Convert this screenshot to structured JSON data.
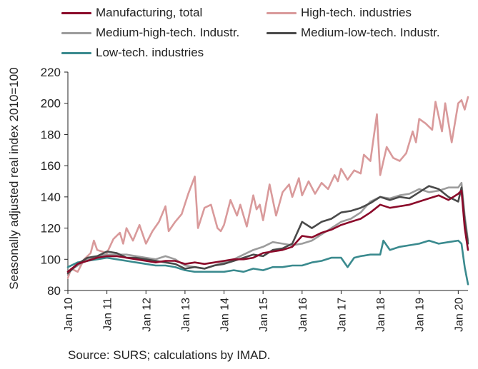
{
  "chart_data": {
    "type": "line",
    "ylabel": "Seasonally adjusted real index 2010=100",
    "ylim": [
      80,
      220
    ],
    "yticks": [
      80,
      100,
      120,
      140,
      160,
      180,
      200,
      220
    ],
    "xticks": [
      "Jan 10",
      "Jan 11",
      "Jan 12",
      "Jan 13",
      "Jan 14",
      "Jan 15",
      "Jan 16",
      "Jan 17",
      "Jan 18",
      "Jan 19",
      "Jan 20"
    ],
    "x_start": "2010-01",
    "x_end": "2020-04",
    "series": [
      {
        "name": "Manufacturing, total",
        "color": "#8B0A2A",
        "points": [
          [
            "2010-01",
            92
          ],
          [
            "2010-04",
            97
          ],
          [
            "2010-07",
            99
          ],
          [
            "2010-10",
            101
          ],
          [
            "2011-01",
            102
          ],
          [
            "2011-04",
            102
          ],
          [
            "2011-07",
            101
          ],
          [
            "2011-10",
            100
          ],
          [
            "2012-01",
            99
          ],
          [
            "2012-04",
            98
          ],
          [
            "2012-07",
            99
          ],
          [
            "2012-10",
            99
          ],
          [
            "2013-01",
            97
          ],
          [
            "2013-04",
            98
          ],
          [
            "2013-07",
            97
          ],
          [
            "2013-10",
            98
          ],
          [
            "2014-01",
            99
          ],
          [
            "2014-04",
            100
          ],
          [
            "2014-07",
            100
          ],
          [
            "2014-10",
            101
          ],
          [
            "2015-01",
            104
          ],
          [
            "2015-04",
            105
          ],
          [
            "2015-07",
            106
          ],
          [
            "2015-10",
            108
          ],
          [
            "2016-01",
            115
          ],
          [
            "2016-04",
            114
          ],
          [
            "2016-07",
            117
          ],
          [
            "2016-10",
            119
          ],
          [
            "2017-01",
            122
          ],
          [
            "2017-04",
            124
          ],
          [
            "2017-07",
            126
          ],
          [
            "2017-10",
            130
          ],
          [
            "2018-01",
            135
          ],
          [
            "2018-04",
            133
          ],
          [
            "2018-07",
            134
          ],
          [
            "2018-10",
            135
          ],
          [
            "2019-01",
            137
          ],
          [
            "2019-04",
            139
          ],
          [
            "2019-07",
            141
          ],
          [
            "2019-10",
            138
          ],
          [
            "2020-01",
            142
          ],
          [
            "2020-02",
            144
          ],
          [
            "2020-03",
            120
          ],
          [
            "2020-04",
            106
          ]
        ]
      },
      {
        "name": "High-tech. industries",
        "color": "#D99A9B",
        "points": [
          [
            "2010-01",
            88
          ],
          [
            "2010-02",
            94
          ],
          [
            "2010-04",
            92
          ],
          [
            "2010-06",
            100
          ],
          [
            "2010-08",
            104
          ],
          [
            "2010-09",
            112
          ],
          [
            "2010-10",
            106
          ],
          [
            "2011-01",
            104
          ],
          [
            "2011-03",
            113
          ],
          [
            "2011-05",
            117
          ],
          [
            "2011-06",
            110
          ],
          [
            "2011-07",
            120
          ],
          [
            "2011-09",
            112
          ],
          [
            "2011-11",
            122
          ],
          [
            "2012-01",
            110
          ],
          [
            "2012-03",
            118
          ],
          [
            "2012-05",
            124
          ],
          [
            "2012-07",
            134
          ],
          [
            "2012-08",
            118
          ],
          [
            "2012-10",
            124
          ],
          [
            "2012-12",
            129
          ],
          [
            "2013-02",
            142
          ],
          [
            "2013-04",
            153
          ],
          [
            "2013-05",
            120
          ],
          [
            "2013-07",
            133
          ],
          [
            "2013-09",
            135
          ],
          [
            "2013-11",
            120
          ],
          [
            "2013-12",
            118
          ],
          [
            "2014-01",
            122
          ],
          [
            "2014-03",
            138
          ],
          [
            "2014-05",
            128
          ],
          [
            "2014-06",
            135
          ],
          [
            "2014-08",
            121
          ],
          [
            "2014-10",
            141
          ],
          [
            "2014-11",
            132
          ],
          [
            "2014-12",
            135
          ],
          [
            "2015-01",
            125
          ],
          [
            "2015-03",
            148
          ],
          [
            "2015-05",
            128
          ],
          [
            "2015-07",
            143
          ],
          [
            "2015-09",
            148
          ],
          [
            "2015-10",
            140
          ],
          [
            "2015-12",
            152
          ],
          [
            "2016-01",
            141
          ],
          [
            "2016-03",
            150
          ],
          [
            "2016-05",
            142
          ],
          [
            "2016-07",
            149
          ],
          [
            "2016-09",
            145
          ],
          [
            "2016-11",
            154
          ],
          [
            "2016-12",
            150
          ],
          [
            "2017-01",
            158
          ],
          [
            "2017-03",
            151
          ],
          [
            "2017-05",
            157
          ],
          [
            "2017-07",
            155
          ],
          [
            "2017-08",
            167
          ],
          [
            "2017-10",
            163
          ],
          [
            "2017-12",
            193
          ],
          [
            "2018-01",
            154
          ],
          [
            "2018-03",
            172
          ],
          [
            "2018-05",
            165
          ],
          [
            "2018-07",
            163
          ],
          [
            "2018-09",
            168
          ],
          [
            "2018-11",
            182
          ],
          [
            "2018-12",
            175
          ],
          [
            "2019-01",
            190
          ],
          [
            "2019-03",
            187
          ],
          [
            "2019-05",
            183
          ],
          [
            "2019-06",
            201
          ],
          [
            "2019-08",
            182
          ],
          [
            "2019-09",
            200
          ],
          [
            "2019-11",
            175
          ],
          [
            "2020-01",
            200
          ],
          [
            "2020-02",
            202
          ],
          [
            "2020-03",
            196
          ],
          [
            "2020-04",
            204
          ]
        ]
      },
      {
        "name": "Medium-high-tech. Industr.",
        "color": "#9C9C9C",
        "points": [
          [
            "2010-01",
            92
          ],
          [
            "2010-04",
            96
          ],
          [
            "2010-07",
            100
          ],
          [
            "2010-10",
            102
          ],
          [
            "2011-01",
            103
          ],
          [
            "2011-04",
            103
          ],
          [
            "2011-07",
            103
          ],
          [
            "2011-10",
            102
          ],
          [
            "2012-01",
            101
          ],
          [
            "2012-04",
            100
          ],
          [
            "2012-07",
            102
          ],
          [
            "2012-10",
            100
          ],
          [
            "2013-01",
            96
          ],
          [
            "2013-04",
            95
          ],
          [
            "2013-07",
            94
          ],
          [
            "2013-10",
            96
          ],
          [
            "2014-01",
            98
          ],
          [
            "2014-04",
            100
          ],
          [
            "2014-07",
            103
          ],
          [
            "2014-10",
            106
          ],
          [
            "2015-01",
            108
          ],
          [
            "2015-04",
            111
          ],
          [
            "2015-07",
            110
          ],
          [
            "2015-10",
            109
          ],
          [
            "2016-01",
            110
          ],
          [
            "2016-04",
            112
          ],
          [
            "2016-07",
            116
          ],
          [
            "2016-10",
            120
          ],
          [
            "2017-01",
            124
          ],
          [
            "2017-04",
            126
          ],
          [
            "2017-07",
            130
          ],
          [
            "2017-10",
            137
          ],
          [
            "2018-01",
            140
          ],
          [
            "2018-04",
            139
          ],
          [
            "2018-07",
            141
          ],
          [
            "2018-10",
            142
          ],
          [
            "2019-01",
            145
          ],
          [
            "2019-04",
            143
          ],
          [
            "2019-07",
            144
          ],
          [
            "2019-10",
            146
          ],
          [
            "2020-01",
            146
          ],
          [
            "2020-02",
            149
          ],
          [
            "2020-03",
            128
          ],
          [
            "2020-04",
            112
          ]
        ]
      },
      {
        "name": "Medium-low-tech. Industr.",
        "color": "#4A4A4A",
        "points": [
          [
            "2010-01",
            91
          ],
          [
            "2010-04",
            97
          ],
          [
            "2010-07",
            101
          ],
          [
            "2010-10",
            102
          ],
          [
            "2011-01",
            105
          ],
          [
            "2011-04",
            104
          ],
          [
            "2011-07",
            101
          ],
          [
            "2011-10",
            101
          ],
          [
            "2012-01",
            100
          ],
          [
            "2012-04",
            99
          ],
          [
            "2012-07",
            98
          ],
          [
            "2012-10",
            97
          ],
          [
            "2013-01",
            94
          ],
          [
            "2013-04",
            95
          ],
          [
            "2013-07",
            94
          ],
          [
            "2013-10",
            96
          ],
          [
            "2014-01",
            97
          ],
          [
            "2014-04",
            99
          ],
          [
            "2014-07",
            101
          ],
          [
            "2014-10",
            103
          ],
          [
            "2015-01",
            102
          ],
          [
            "2015-04",
            106
          ],
          [
            "2015-07",
            107
          ],
          [
            "2015-10",
            110
          ],
          [
            "2016-01",
            124
          ],
          [
            "2016-04",
            120
          ],
          [
            "2016-07",
            124
          ],
          [
            "2016-10",
            126
          ],
          [
            "2017-01",
            130
          ],
          [
            "2017-04",
            131
          ],
          [
            "2017-07",
            133
          ],
          [
            "2017-10",
            136
          ],
          [
            "2018-01",
            140
          ],
          [
            "2018-04",
            138
          ],
          [
            "2018-07",
            140
          ],
          [
            "2018-10",
            139
          ],
          [
            "2019-01",
            143
          ],
          [
            "2019-04",
            147
          ],
          [
            "2019-07",
            145
          ],
          [
            "2019-10",
            140
          ],
          [
            "2020-01",
            137
          ],
          [
            "2020-02",
            146
          ],
          [
            "2020-03",
            125
          ],
          [
            "2020-04",
            110
          ]
        ]
      },
      {
        "name": "Low-tech. industries",
        "color": "#3A8A8E",
        "points": [
          [
            "2010-01",
            95
          ],
          [
            "2010-04",
            98
          ],
          [
            "2010-07",
            99
          ],
          [
            "2010-10",
            100
          ],
          [
            "2011-01",
            101
          ],
          [
            "2011-04",
            100
          ],
          [
            "2011-07",
            99
          ],
          [
            "2011-10",
            98
          ],
          [
            "2012-01",
            97
          ],
          [
            "2012-04",
            96
          ],
          [
            "2012-07",
            96
          ],
          [
            "2012-10",
            95
          ],
          [
            "2013-01",
            93
          ],
          [
            "2013-04",
            92
          ],
          [
            "2013-07",
            92
          ],
          [
            "2013-10",
            92
          ],
          [
            "2014-01",
            92
          ],
          [
            "2014-04",
            93
          ],
          [
            "2014-07",
            92
          ],
          [
            "2014-10",
            94
          ],
          [
            "2015-01",
            93
          ],
          [
            "2015-04",
            95
          ],
          [
            "2015-07",
            95
          ],
          [
            "2015-10",
            96
          ],
          [
            "2016-01",
            96
          ],
          [
            "2016-04",
            98
          ],
          [
            "2016-07",
            99
          ],
          [
            "2016-10",
            101
          ],
          [
            "2017-01",
            101
          ],
          [
            "2017-03",
            95
          ],
          [
            "2017-05",
            101
          ],
          [
            "2017-07",
            102
          ],
          [
            "2017-10",
            103
          ],
          [
            "2018-01",
            103
          ],
          [
            "2018-02",
            112
          ],
          [
            "2018-04",
            106
          ],
          [
            "2018-07",
            108
          ],
          [
            "2018-10",
            109
          ],
          [
            "2019-01",
            110
          ],
          [
            "2019-04",
            112
          ],
          [
            "2019-07",
            110
          ],
          [
            "2019-10",
            111
          ],
          [
            "2020-01",
            112
          ],
          [
            "2020-02",
            110
          ],
          [
            "2020-03",
            95
          ],
          [
            "2020-04",
            84
          ]
        ]
      }
    ]
  },
  "source": "Source: SURS; calculations by IMAD."
}
